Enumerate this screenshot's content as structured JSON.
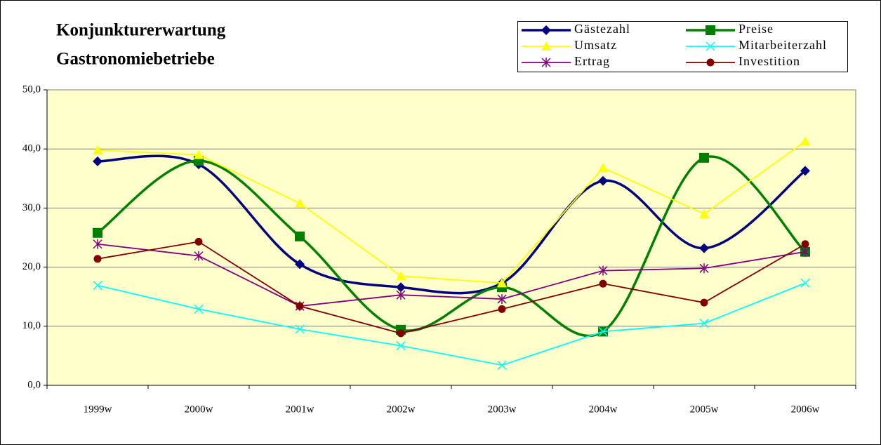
{
  "chart_data": {
    "type": "line",
    "title": [
      "Konjunkturerwartung",
      "Gastronomiebetriebe"
    ],
    "categories": [
      "1999w",
      "2000w",
      "2001w",
      "2002w",
      "2003w",
      "2004w",
      "2005w",
      "2006w"
    ],
    "series": [
      {
        "name": "Gästezahl",
        "color": "#000080",
        "marker": "diamond",
        "smooth": true,
        "values": [
          37.9,
          37.4,
          20.5,
          16.6,
          17.3,
          34.6,
          23.2,
          36.3
        ]
      },
      {
        "name": "Preise",
        "color": "#008000",
        "marker": "square",
        "smooth": true,
        "values": [
          25.8,
          38.0,
          25.2,
          9.4,
          16.6,
          9.1,
          38.5,
          22.6
        ]
      },
      {
        "name": "Umsatz",
        "color": "#ffff00",
        "marker": "triangle",
        "smooth": false,
        "values": [
          39.8,
          39.0,
          30.8,
          18.5,
          17.3,
          36.8,
          29.0,
          41.3
        ]
      },
      {
        "name": "Mitarbeiterzahl",
        "color": "#00ffff",
        "marker": "x",
        "smooth": false,
        "values": [
          16.9,
          12.9,
          9.5,
          6.7,
          3.4,
          9.1,
          10.5,
          17.3
        ]
      },
      {
        "name": "Ertrag",
        "color": "#800080",
        "marker": "star",
        "smooth": false,
        "values": [
          23.9,
          21.9,
          13.4,
          15.3,
          14.6,
          19.4,
          19.8,
          22.6
        ]
      },
      {
        "name": "Investition",
        "color": "#800000",
        "marker": "circle",
        "smooth": false,
        "values": [
          21.4,
          24.3,
          13.4,
          8.8,
          12.9,
          17.2,
          14.0,
          23.9
        ]
      }
    ],
    "ylim": [
      0,
      50
    ],
    "yticks": [
      {
        "value": 0,
        "label": "0,0"
      },
      {
        "value": 10,
        "label": "10,0"
      },
      {
        "value": 20,
        "label": "20,0"
      },
      {
        "value": 30,
        "label": "30,0"
      },
      {
        "value": 40,
        "label": "40,0"
      },
      {
        "value": 50,
        "label": "50,0"
      }
    ],
    "grid": true,
    "legend": "top-right",
    "plot_background": "#ffffcc"
  }
}
